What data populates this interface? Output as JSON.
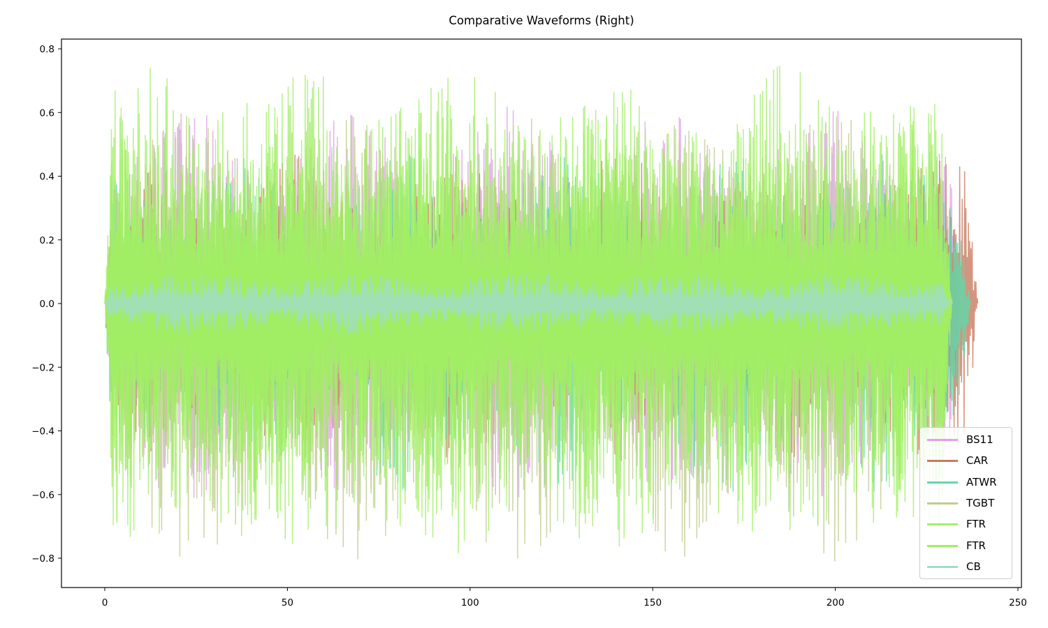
{
  "chart_data": {
    "type": "line",
    "title": "Comparative Waveforms (Right)",
    "xlabel": "",
    "ylabel": "",
    "xlim": [
      -12,
      250
    ],
    "ylim": [
      -0.89,
      0.83
    ],
    "x_ticks": [
      "0",
      "50",
      "100",
      "150",
      "200",
      "250"
    ],
    "y_ticks": [
      "0.8",
      "0.6",
      "0.4",
      "0.2",
      "0.0",
      "−0.2",
      "−0.4",
      "−0.6",
      "−0.8"
    ],
    "grid": false,
    "legend_position": "lower right",
    "series": [
      {
        "name": "BS11",
        "color": "#e0a0e8",
        "duration": 234,
        "peak_pos": 0.62,
        "peak_neg": -0.62
      },
      {
        "name": "CAR",
        "color": "#c87a60",
        "duration": 239,
        "peak_pos": 0.47,
        "peak_neg": -0.5
      },
      {
        "name": "ATWR",
        "color": "#5fd8a8",
        "duration": 237,
        "peak_pos": 0.47,
        "peak_neg": -0.6
      },
      {
        "name": "TGBT",
        "color": "#bfcc8e",
        "duration": 232,
        "peak_pos": 0.6,
        "peak_neg": -0.82
      },
      {
        "name": "FTR",
        "color": "#a4ee6a",
        "duration": 232,
        "peak_pos": 0.75,
        "peak_neg": -0.8
      },
      {
        "name": "FTR",
        "color": "#a0f060",
        "duration": 232,
        "peak_pos": 0.65,
        "peak_neg": -0.75
      },
      {
        "name": "CB",
        "color": "#a0dcc8",
        "duration": 232,
        "peak_pos": 0.1,
        "peak_neg": -0.1
      }
    ]
  }
}
